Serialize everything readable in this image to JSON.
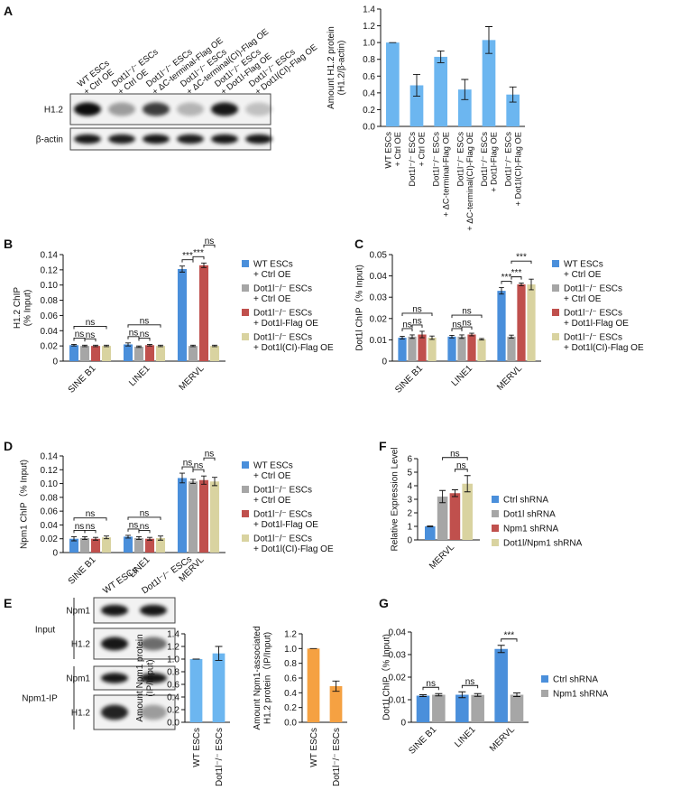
{
  "panel_labels": [
    "A",
    "B",
    "C",
    "D",
    "E",
    "F",
    "G"
  ],
  "blots": {
    "a": {
      "rows": [
        "H1.2",
        "β-actin"
      ]
    },
    "e": {
      "groups": [
        "Input",
        "Npm1-IP"
      ],
      "rows": [
        "Npm1",
        "H1.2",
        "Npm1",
        "H1.2"
      ]
    }
  },
  "chart_data": [
    {
      "type": "bar",
      "ylabel": "Amount H1.2 protein\n(H1.2/β-actin)",
      "categories": [
        "WT ESCs\n+ Ctrl OE",
        "Dot1l⁻/⁻ ESCs\n+ Ctrl OE",
        "Dot1l⁻/⁻ ESCs\n+ ΔC-terminal-Flag OE",
        "Dot1l⁻/⁻ ESCs\n+ ΔC-terminal(CI)-Flag OE",
        "Dot1l⁻/⁻ ESCs\n+ Dot1l-Flag OE",
        "Dot1l⁻/⁻ ESCs\n+ Dot1l(CI)-Flag OE"
      ],
      "values": [
        1,
        0.49,
        0.83,
        0.44,
        1.03,
        0.38
      ],
      "errors": [
        0,
        0.13,
        0.07,
        0.12,
        0.16,
        0.09
      ],
      "color": "#6cb6f0",
      "ylim": [
        0,
        1.4
      ],
      "yticks": [
        {
          "value": 0,
          "label": "0.0"
        },
        0.2,
        0.4,
        0.6,
        0.8,
        {
          "value": 1,
          "label": "1.0"
        },
        1.2,
        1.4
      ]
    },
    {
      "type": "bar",
      "ylabel": "H1.2 ChIP\n(% Input)",
      "categories": [
        "SINE B1",
        "LINE1",
        "MERVL"
      ],
      "series": [
        {
          "name": "WT ESCs\n+ Ctrl OE",
          "color": "#4a8fdb",
          "values": [
            0.021,
            0.022,
            0.121
          ],
          "errors": [
            0.001,
            0.002,
            0.004
          ]
        },
        {
          "name": "Dot1l⁻/⁻ ESCs\n+ Ctrl OE",
          "color": "#a6a6a6",
          "values": [
            0.02,
            0.019,
            0.02
          ],
          "errors": [
            0.001,
            0.001,
            0.001
          ]
        },
        {
          "name": "Dot1l⁻/⁻ ESCs\n+ Dot1l-Flag OE",
          "color": "#c0504d",
          "values": [
            0.02,
            0.021,
            0.126
          ],
          "errors": [
            0.001,
            0.001,
            0.003
          ]
        },
        {
          "name": "Dot1l⁻/⁻ ESCs\n+ Dot1l(CI)-Flag OE",
          "color": "#d9d3a0",
          "values": [
            0.02,
            0.02,
            0.02
          ],
          "errors": [
            0.001,
            0.001,
            0.001
          ]
        }
      ],
      "ylim": [
        0,
        0.14
      ],
      "yticks": [
        0,
        0.02,
        0.04,
        0.06,
        0.08,
        {
          "value": 0.1,
          "label": "0.10"
        },
        0.12,
        0.14
      ],
      "annotations": [
        "ns",
        "ns",
        "ns",
        "ns",
        "ns",
        "ns",
        "***",
        "***",
        "ns"
      ]
    },
    {
      "type": "bar",
      "ylabel": "Dot1l ChIP（% Input)",
      "categories": [
        "SINE B1",
        "LINE1",
        "MERVL"
      ],
      "series": [
        {
          "name": "WT ESCs\n+ Ctrl OE",
          "color": "#4a8fdb",
          "values": [
            0.011,
            0.0115,
            0.033
          ],
          "errors": [
            0.0006,
            0.0006,
            0.0015
          ]
        },
        {
          "name": "Dot1l⁻/⁻ ESCs\n+ Ctrl OE",
          "color": "#a6a6a6",
          "values": [
            0.0115,
            0.0115,
            0.0115
          ],
          "errors": [
            0.0008,
            0.0008,
            0.0007
          ]
        },
        {
          "name": "Dot1l⁻/⁻ ESCs\n+ Dot1l-Flag OE",
          "color": "#c0504d",
          "values": [
            0.0125,
            0.0125,
            0.036
          ],
          "errors": [
            0.0015,
            0.0006,
            0.0006
          ]
        },
        {
          "name": "Dot1l⁻/⁻ ESCs\n+ Dot1l(CI)-Flag OE",
          "color": "#d9d3a0",
          "values": [
            0.011,
            0.0103,
            0.036
          ],
          "errors": [
            0.0008,
            0.0003,
            0.0025
          ]
        }
      ],
      "ylim": [
        0,
        0.05
      ],
      "yticks": [
        0,
        0.01,
        0.02,
        0.03,
        0.04,
        0.05
      ],
      "annotations": [
        "ns",
        "ns",
        "ns",
        "ns",
        "ns",
        "ns",
        "***",
        "***",
        "***"
      ]
    },
    {
      "type": "bar",
      "ylabel": "Npm1 ChIP（% Input)",
      "categories": [
        "SINE B1",
        "LINE1",
        "MERVL"
      ],
      "series": [
        {
          "name": "WT ESCs\n+ Ctrl OE",
          "color": "#4a8fdb",
          "values": [
            0.02,
            0.023,
            0.108
          ],
          "errors": [
            0.003,
            0.002,
            0.007
          ]
        },
        {
          "name": "Dot1l⁻/⁻ ESCs\n+ Ctrl OE",
          "color": "#a6a6a6",
          "values": [
            0.021,
            0.021,
            0.103
          ],
          "errors": [
            0.002,
            0.002,
            0.003
          ]
        },
        {
          "name": "Dot1l⁻/⁻ ESCs\n+ Dot1l-Flag OE",
          "color": "#c0504d",
          "values": [
            0.02,
            0.02,
            0.105
          ],
          "errors": [
            0.002,
            0.002,
            0.006
          ]
        },
        {
          "name": "Dot1l⁻/⁻ ESCs\n+ Dot1l(CI)-Flag OE",
          "color": "#d9d3a0",
          "values": [
            0.022,
            0.021,
            0.103
          ],
          "errors": [
            0.002,
            0.003,
            0.006
          ]
        }
      ],
      "ylim": [
        0,
        0.14
      ],
      "yticks": [
        0,
        0.02,
        0.04,
        0.06,
        0.08,
        {
          "value": 0.1,
          "label": "0.10"
        },
        0.12,
        0.14
      ],
      "annotations": [
        "ns",
        "ns",
        "ns",
        "ns",
        "ns",
        "ns",
        "ns",
        "ns",
        "ns"
      ]
    },
    {
      "type": "bar",
      "ylabel": "Relative Expression Level",
      "categories": [
        "MERVL"
      ],
      "series": [
        {
          "name": "Ctrl shRNA",
          "color": "#4a8fdb",
          "values": [
            1
          ],
          "errors": [
            0.03
          ]
        },
        {
          "name": "Dot1l shRNA",
          "color": "#a6a6a6",
          "values": [
            3.2
          ],
          "errors": [
            0.45
          ]
        },
        {
          "name": "Npm1 shRNA",
          "color": "#c0504d",
          "values": [
            3.45
          ],
          "errors": [
            0.25
          ]
        },
        {
          "name": "Dot1l/Npm1 shRNA",
          "color": "#d9d3a0",
          "values": [
            4.15
          ],
          "errors": [
            0.6
          ]
        }
      ],
      "ylim": [
        0,
        6
      ],
      "yticks": [
        0,
        1,
        2,
        3,
        4,
        5,
        6
      ],
      "annotations": [
        "ns",
        "ns"
      ]
    },
    {
      "type": "bar",
      "ylabel": "Amount Npm1 protein\n(IP/Input)",
      "categories": [
        "WT ESCs",
        "Dot1l⁻/⁻ ESCs"
      ],
      "values": [
        1,
        1.09
      ],
      "errors": [
        0,
        0.11
      ],
      "color": "#6cb6f0",
      "ylim": [
        0,
        1.4
      ],
      "yticks": [
        {
          "value": 0,
          "label": "0.0"
        },
        0.2,
        0.4,
        0.6,
        0.8,
        {
          "value": 1,
          "label": "1.0"
        },
        1.2,
        1.4
      ]
    },
    {
      "type": "bar",
      "ylabel": "Amount Npm1-associated\nH1.2 protein（IP/Input)",
      "categories": [
        "WT ESCs",
        "Dot1l⁻/⁻ ESCs"
      ],
      "values": [
        1,
        0.49
      ],
      "errors": [
        0,
        0.07
      ],
      "color": "#f5a142",
      "ylim": [
        0,
        1.2
      ],
      "yticks": [
        {
          "value": 0,
          "label": "0.0"
        },
        0.2,
        0.4,
        0.6,
        0.8,
        {
          "value": 1,
          "label": "1.0"
        },
        1.2
      ]
    },
    {
      "type": "bar",
      "ylabel": "Dot1l ChIP（% Input)",
      "categories": [
        "SINE B1",
        "LINE1",
        "MERVL"
      ],
      "series": [
        {
          "name": "Ctrl shRNA",
          "color": "#4a8fdb",
          "values": [
            0.0118,
            0.0122,
            0.0325
          ],
          "errors": [
            0.0004,
            0.0013,
            0.0016
          ]
        },
        {
          "name": "Npm1 shRNA",
          "color": "#a6a6a6",
          "values": [
            0.0122,
            0.0121,
            0.0122
          ],
          "errors": [
            0.0005,
            0.0006,
            0.0008
          ]
        }
      ],
      "ylim": [
        0,
        0.04
      ],
      "yticks": [
        0,
        0.01,
        0.02,
        0.03,
        0.04
      ],
      "annotations": [
        "ns",
        "ns",
        "***"
      ]
    }
  ]
}
